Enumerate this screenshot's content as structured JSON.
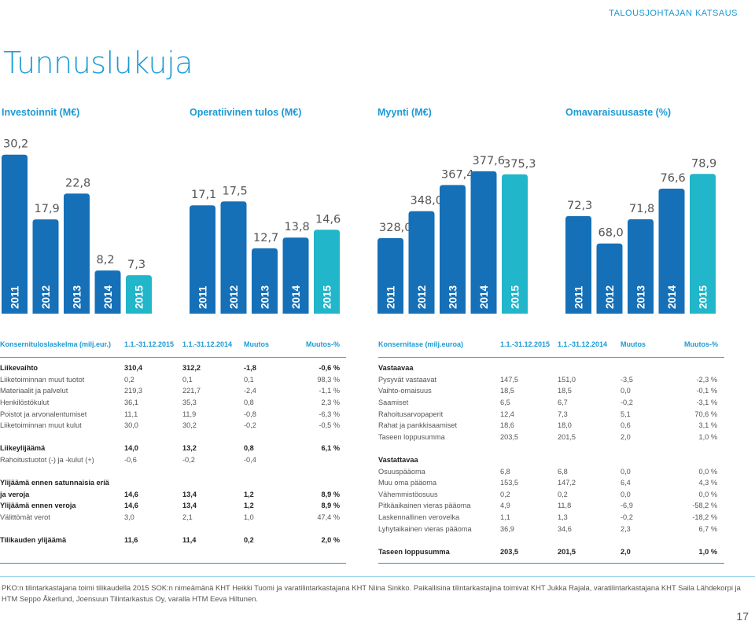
{
  "header": {
    "section": "TALOUSJOHTAJAN KATSAUS",
    "title": "Tunnuslukuja"
  },
  "chart_data": [
    {
      "type": "bar",
      "title": "Investoinnit (M€)",
      "categories": [
        "2011",
        "2012",
        "2013",
        "2014",
        "2015"
      ],
      "values": [
        30.2,
        17.9,
        22.8,
        8.2,
        7.3
      ],
      "labels": [
        "30,2",
        "17,9",
        "22,8",
        "8,2",
        "7,3"
      ]
    },
    {
      "type": "bar",
      "title": "Operatiivinen tulos (M€)",
      "categories": [
        "2011",
        "2012",
        "2013",
        "2014",
        "2015"
      ],
      "values": [
        17.1,
        17.5,
        12.7,
        13.8,
        14.6
      ],
      "labels": [
        "17,1",
        "17,5",
        "12,7",
        "13,8",
        "14,6"
      ]
    },
    {
      "type": "bar",
      "title": "Myynti (M€)",
      "categories": [
        "2011",
        "2012",
        "2013",
        "2014",
        "2015"
      ],
      "values": [
        328.0,
        348.0,
        367.4,
        377.6,
        375.3
      ],
      "labels": [
        "328,0",
        "348,0",
        "367,4",
        "377,6",
        "375,3"
      ]
    },
    {
      "type": "bar",
      "title": "Omavaraisuusaste (%)",
      "categories": [
        "2011",
        "2012",
        "2013",
        "2014",
        "2015"
      ],
      "values": [
        72.3,
        68.0,
        71.8,
        76.6,
        78.9
      ],
      "labels": [
        "72,3",
        "68,0",
        "71,8",
        "76,6",
        "78,9"
      ]
    }
  ],
  "colors": {
    "accent": "#1c9ad6",
    "bar": "#1570b8",
    "bar_last": "#21b6c9"
  },
  "income": {
    "headers": [
      "Konsernituloslaskelma (milj.eur.)",
      "1.1.-31.12.2015",
      "1.1.-31.12.2014",
      "Muutos",
      "Muutos-%"
    ],
    "rows": [
      {
        "bold": true,
        "cells": [
          "Liikevaihto",
          "310,4",
          "312,2",
          "-1,8",
          "-0,6 %"
        ]
      },
      {
        "bold": false,
        "cells": [
          "Liiketoiminnan muut tuotot",
          "0,2",
          "0,1",
          "0,1",
          "98,3 %"
        ]
      },
      {
        "bold": false,
        "cells": [
          "Materiaalit ja palvelut",
          "219,3",
          "221,7",
          "-2,4",
          "-1,1 %"
        ]
      },
      {
        "bold": false,
        "cells": [
          "Henkilöstökulut",
          "36,1",
          "35,3",
          "0,8",
          "2,3 %"
        ]
      },
      {
        "bold": false,
        "cells": [
          "Poistot ja arvonalentumiset",
          "11,1",
          "11,9",
          "-0,8",
          "-6,3 %"
        ]
      },
      {
        "bold": false,
        "cells": [
          "Liiketoiminnan muut kulut",
          "30,0",
          "30,2",
          "-0,2",
          "-0,5 %"
        ]
      },
      {
        "gap": true
      },
      {
        "bold": true,
        "cells": [
          "Liikeylijäämä",
          "14,0",
          "13,2",
          "0,8",
          "6,1 %"
        ]
      },
      {
        "bold": false,
        "cells": [
          "Rahoitustuotot (-) ja -kulut (+)",
          "-0,6",
          "-0,2",
          "-0,4",
          ""
        ]
      },
      {
        "gap": true
      },
      {
        "bold": true,
        "cells": [
          "Ylijäämä ennen satunnaisia eriä",
          "",
          "",
          "",
          ""
        ]
      },
      {
        "bold": true,
        "cells": [
          "ja veroja",
          "14,6",
          "13,4",
          "1,2",
          "8,9 %"
        ]
      },
      {
        "bold": true,
        "cells": [
          "Ylijäämä ennen veroja",
          "14,6",
          "13,4",
          "1,2",
          "8,9 %"
        ]
      },
      {
        "bold": false,
        "cells": [
          "Välittömät verot",
          "3,0",
          "2,1",
          "1,0",
          "47,4 %"
        ]
      },
      {
        "gap": true
      },
      {
        "bold": true,
        "cells": [
          "Tilikauden ylijäämä",
          "11,6",
          "11,4",
          "0,2",
          "2,0 %"
        ]
      }
    ]
  },
  "balance": {
    "headers": [
      "Konsernitase (milj.euroa)",
      "1.1.-31.12.2015",
      "1.1.-31.12.2014",
      "Muutos",
      "Muutos-%"
    ],
    "rows": [
      {
        "bold": true,
        "cells": [
          "Vastaavaa",
          "",
          "",
          "",
          ""
        ]
      },
      {
        "bold": false,
        "cells": [
          "Pysyvät vastaavat",
          "147,5",
          "151,0",
          "-3,5",
          "-2,3 %"
        ]
      },
      {
        "bold": false,
        "cells": [
          "Vaihto-omaisuus",
          "18,5",
          "18,5",
          "0,0",
          "-0,1 %"
        ]
      },
      {
        "bold": false,
        "cells": [
          "Saamiset",
          "6,5",
          "6,7",
          "-0,2",
          "-3,1 %"
        ]
      },
      {
        "bold": false,
        "cells": [
          "Rahoitusarvopaperit",
          "12,4",
          "7,3",
          "5,1",
          "70,6 %"
        ]
      },
      {
        "bold": false,
        "cells": [
          "Rahat ja pankkisaamiset",
          "18,6",
          "18,0",
          "0,6",
          "3,1 %"
        ]
      },
      {
        "bold": false,
        "cells": [
          "Taseen loppusumma",
          "203,5",
          "201,5",
          "2,0",
          "1,0 %"
        ]
      },
      {
        "gap": true
      },
      {
        "bold": true,
        "cells": [
          "Vastattavaa",
          "",
          "",
          "",
          ""
        ]
      },
      {
        "bold": false,
        "cells": [
          "Osuuspääoma",
          "6,8",
          "6,8",
          "0,0",
          "0,0 %"
        ]
      },
      {
        "bold": false,
        "cells": [
          "Muu oma pääoma",
          "153,5",
          "147,2",
          "6,4",
          "4,3 %"
        ]
      },
      {
        "bold": false,
        "cells": [
          "Vähemmistöosuus",
          "0,2",
          "0,2",
          "0,0",
          "0,0 %"
        ]
      },
      {
        "bold": false,
        "cells": [
          "Pitkäaikainen vieras pääoma",
          "4,9",
          "11,8",
          "-6,9",
          "-58,2 %"
        ]
      },
      {
        "bold": false,
        "cells": [
          "Laskennallinen verovelka",
          "1,1",
          "1,3",
          "-0,2",
          "-18,2 %"
        ]
      },
      {
        "bold": false,
        "cells": [
          "Lyhytaikainen vieras pääoma",
          "36,9",
          "34,6",
          "2,3",
          "6,7 %"
        ]
      },
      {
        "gap": true
      },
      {
        "bold": true,
        "cells": [
          "Taseen loppusumma",
          "203,5",
          "201,5",
          "2,0",
          "1,0 %"
        ]
      }
    ]
  },
  "footnote": "PKO:n tilintarkastajana toimi tilikaudella 2015 SOK:n nimeämänä KHT Heikki Tuomi ja varatilintarkastajana KHT Niina Sinkko. Paikallisina tilintarkastajina toimivat KHT Jukka Rajala, varatilintarkastajana KHT Saila Lähdekorpi ja HTM Seppo Åkerlund, Joensuun Tilintarkastus Oy, varalla HTM Eeva Hiltunen.",
  "page_number": "17"
}
